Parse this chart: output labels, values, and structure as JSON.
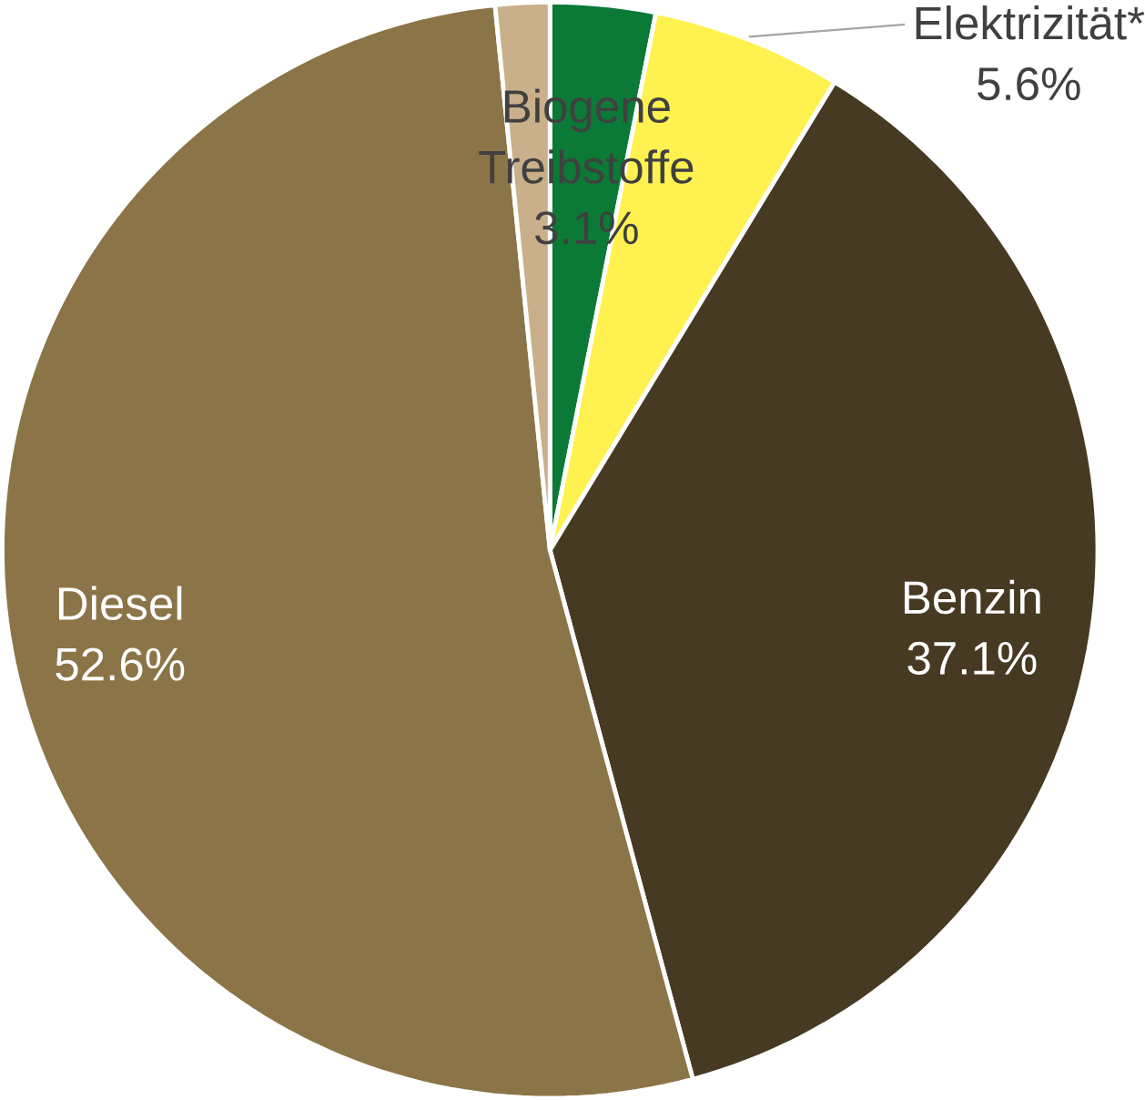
{
  "chart_data": {
    "type": "pie",
    "categories": [
      "Biogene Treibstoffe",
      "Elektrizität*",
      "Benzin",
      "Diesel",
      null
    ],
    "values": [
      3.1,
      5.6,
      37.1,
      52.6,
      1.6
    ],
    "value_labels": [
      "3.1%",
      "5.6%",
      "37.1%",
      "52.6%",
      null
    ],
    "colors": [
      "#0b7a37",
      "#fff250",
      "#463a22",
      "#8b7447",
      "#c9b08a"
    ]
  }
}
